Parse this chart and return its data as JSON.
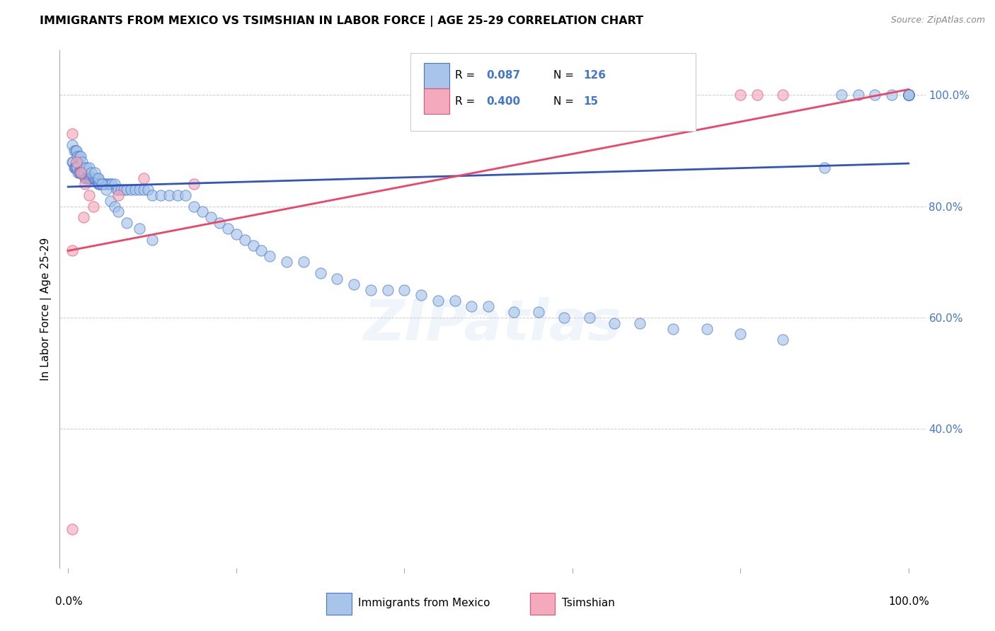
{
  "title": "IMMIGRANTS FROM MEXICO VS TSIMSHIAN IN LABOR FORCE | AGE 25-29 CORRELATION CHART",
  "source": "Source: ZipAtlas.com",
  "ylabel": "In Labor Force | Age 25-29",
  "legend_label1": "Immigrants from Mexico",
  "legend_label2": "Tsimshian",
  "blue_fill": "#A8C4E8",
  "blue_edge": "#4477CC",
  "pink_fill": "#F4AABC",
  "pink_edge": "#DD5577",
  "blue_line_color": "#3355BB",
  "pink_line_color": "#EE4466",
  "watermark": "ZIPatlas",
  "blue_scatter_x": [
    0.005,
    0.006,
    0.007,
    0.008,
    0.009,
    0.01,
    0.011,
    0.012,
    0.013,
    0.014,
    0.015,
    0.016,
    0.017,
    0.018,
    0.019,
    0.02,
    0.021,
    0.022,
    0.023,
    0.024,
    0.025,
    0.026,
    0.027,
    0.028,
    0.029,
    0.03,
    0.031,
    0.032,
    0.033,
    0.034,
    0.035,
    0.036,
    0.037,
    0.038,
    0.04,
    0.042,
    0.044,
    0.046,
    0.048,
    0.05,
    0.052,
    0.055,
    0.058,
    0.06,
    0.063,
    0.066,
    0.07,
    0.075,
    0.08,
    0.085,
    0.09,
    0.095,
    0.1,
    0.11,
    0.12,
    0.13,
    0.14,
    0.15,
    0.16,
    0.17,
    0.18,
    0.19,
    0.2,
    0.21,
    0.22,
    0.23,
    0.24,
    0.26,
    0.28,
    0.3,
    0.32,
    0.34,
    0.36,
    0.38,
    0.4,
    0.42,
    0.44,
    0.46,
    0.48,
    0.5,
    0.53,
    0.56,
    0.59,
    0.62,
    0.65,
    0.68,
    0.72,
    0.76,
    0.8,
    0.85,
    0.9,
    0.92,
    0.94,
    0.96,
    0.98,
    1.0,
    1.0,
    1.0,
    1.0,
    1.0,
    1.0,
    1.0,
    1.0,
    1.0,
    0.005,
    0.007,
    0.009,
    0.01,
    0.011,
    0.013,
    0.015,
    0.017,
    0.019,
    0.022,
    0.025,
    0.028,
    0.032,
    0.036,
    0.04,
    0.045,
    0.05,
    0.055,
    0.06,
    0.07,
    0.085,
    0.1
  ],
  "blue_scatter_y": [
    0.88,
    0.88,
    0.87,
    0.87,
    0.87,
    0.87,
    0.87,
    0.86,
    0.86,
    0.86,
    0.86,
    0.86,
    0.86,
    0.86,
    0.86,
    0.85,
    0.85,
    0.85,
    0.85,
    0.85,
    0.85,
    0.85,
    0.85,
    0.85,
    0.85,
    0.85,
    0.85,
    0.85,
    0.85,
    0.85,
    0.85,
    0.84,
    0.84,
    0.84,
    0.84,
    0.84,
    0.84,
    0.84,
    0.84,
    0.84,
    0.84,
    0.84,
    0.83,
    0.83,
    0.83,
    0.83,
    0.83,
    0.83,
    0.83,
    0.83,
    0.83,
    0.83,
    0.82,
    0.82,
    0.82,
    0.82,
    0.82,
    0.8,
    0.79,
    0.78,
    0.77,
    0.76,
    0.75,
    0.74,
    0.73,
    0.72,
    0.71,
    0.7,
    0.7,
    0.68,
    0.67,
    0.66,
    0.65,
    0.65,
    0.65,
    0.64,
    0.63,
    0.63,
    0.62,
    0.62,
    0.61,
    0.61,
    0.6,
    0.6,
    0.59,
    0.59,
    0.58,
    0.58,
    0.57,
    0.56,
    0.87,
    1.0,
    1.0,
    1.0,
    1.0,
    1.0,
    1.0,
    1.0,
    1.0,
    1.0,
    1.0,
    1.0,
    1.0,
    1.0,
    0.91,
    0.9,
    0.9,
    0.9,
    0.89,
    0.89,
    0.89,
    0.88,
    0.87,
    0.87,
    0.87,
    0.86,
    0.86,
    0.85,
    0.84,
    0.83,
    0.81,
    0.8,
    0.79,
    0.77,
    0.76,
    0.74
  ],
  "pink_scatter_x": [
    0.005,
    0.01,
    0.015,
    0.02,
    0.025,
    0.03,
    0.06,
    0.09,
    0.15,
    0.005,
    0.018,
    0.8,
    0.82,
    0.85,
    0.005
  ],
  "pink_scatter_y": [
    0.93,
    0.88,
    0.86,
    0.84,
    0.82,
    0.8,
    0.82,
    0.85,
    0.84,
    0.72,
    0.78,
    1.0,
    1.0,
    1.0,
    0.22
  ],
  "blue_line_x": [
    0.0,
    1.0
  ],
  "blue_line_y": [
    0.835,
    0.877
  ],
  "pink_line_x": [
    0.0,
    1.0
  ],
  "pink_line_y": [
    0.72,
    1.01
  ],
  "xlim": [
    -0.01,
    1.02
  ],
  "ylim": [
    0.15,
    1.08
  ],
  "yticks": [
    0.4,
    0.6,
    0.8,
    1.0
  ],
  "ytick_labels": [
    "40.0%",
    "60.0%",
    "80.0%",
    "100.0%"
  ],
  "xtick_label_left": "0.0%",
  "xtick_label_right": "100.0%",
  "grid_color": "#CCCCCC",
  "background_color": "#FFFFFF"
}
